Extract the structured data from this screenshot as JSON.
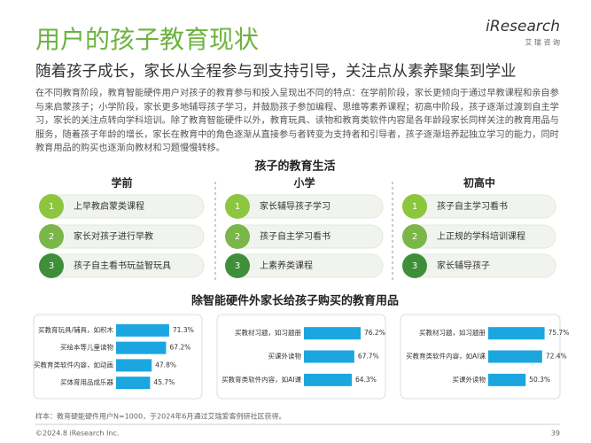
{
  "header": {
    "title": "用户的孩子教育现状",
    "subtitle": "随着孩子成长，家长从全程参与到支持引导，关注点从素养聚集到学业",
    "logo": "iResearch",
    "logo_sub": "艾 瑞 咨 询"
  },
  "intro": "在不同教育阶段，教育智能硬件用户对孩子的教育参与和投入呈现出不同的特点：在学前阶段，家长更倾向于通过早教课程和亲自参与来启蒙孩子；小学阶段，家长更多地辅导孩子学习，并鼓励孩子参加编程、思维等素养课程；初高中阶段，孩子逐渐过渡到自主学习，家长的关注点转向学科培训。除了教育智能硬件以外，教育玩具、读物和教育类软件内容是各年龄段家长同样关注的教育用品与服务，随着孩子年龄的增长，家长在教育中的角色逐渐从直接参与者转变为支持者和引导者，孩子逐渐培养起独立学习的能力，同时教育用品的购买也逐渐向教材和习题慢慢转移。",
  "section1": {
    "title": "孩子的教育生活",
    "columns": [
      {
        "title": "学前",
        "items": [
          {
            "number": "1",
            "text": "上早教启蒙类课程"
          },
          {
            "number": "2",
            "text": "家长对孩子进行早教"
          },
          {
            "number": "3",
            "text": "孩子自主看书玩益智玩具"
          }
        ]
      },
      {
        "title": "小学",
        "items": [
          {
            "number": "1",
            "text": "家长辅导孩子学习"
          },
          {
            "number": "2",
            "text": "孩子自主学习看书"
          },
          {
            "number": "3",
            "text": "上素养类课程"
          }
        ]
      },
      {
        "title": "初高中",
        "items": [
          {
            "number": "1",
            "text": "孩子自主学习看书"
          },
          {
            "number": "2",
            "text": "上正规的学科培训课程"
          },
          {
            "number": "3",
            "text": "家长辅导孩子"
          }
        ]
      }
    ]
  },
  "section2": {
    "title": "除智能硬件外家长给孩子购买的教育用品"
  },
  "chart_data": [
    {
      "type": "bar",
      "categories": [
        "买教育玩具/辅具，如积木",
        "买绘本等儿童读物",
        "买教育类软件内容，如动画",
        "买体育用品成乐器"
      ],
      "values": [
        71.3,
        67.2,
        47.8,
        45.7
      ],
      "value_labels": [
        "71.3%",
        "67.2%",
        "47.8%",
        "45.7%"
      ],
      "color": "#1ba6df"
    },
    {
      "type": "bar",
      "categories": [
        "买教材习题，如习题册",
        "买课外读物",
        "买教育类软件内容，如AI课"
      ],
      "values": [
        76.2,
        67.7,
        64.3
      ],
      "value_labels": [
        "76.2%",
        "67.7%",
        "64.3%"
      ],
      "color": "#1ba6df"
    },
    {
      "type": "bar",
      "categories": [
        "买教材习题，如习题册",
        "买教育类软件内容，如AI课",
        "买课外读物"
      ],
      "values": [
        75.7,
        72.4,
        50.3
      ],
      "value_labels": [
        "75.7%",
        "72.4%",
        "50.3%"
      ],
      "color": "#1ba6df"
    }
  ],
  "footer": {
    "note": "样本：教育硬能硬件用户N=1000，于2024年6月通过艾瑞爱客例研社区获得。",
    "copyright": "©2024.8 iResearch Inc.",
    "page": "39"
  }
}
